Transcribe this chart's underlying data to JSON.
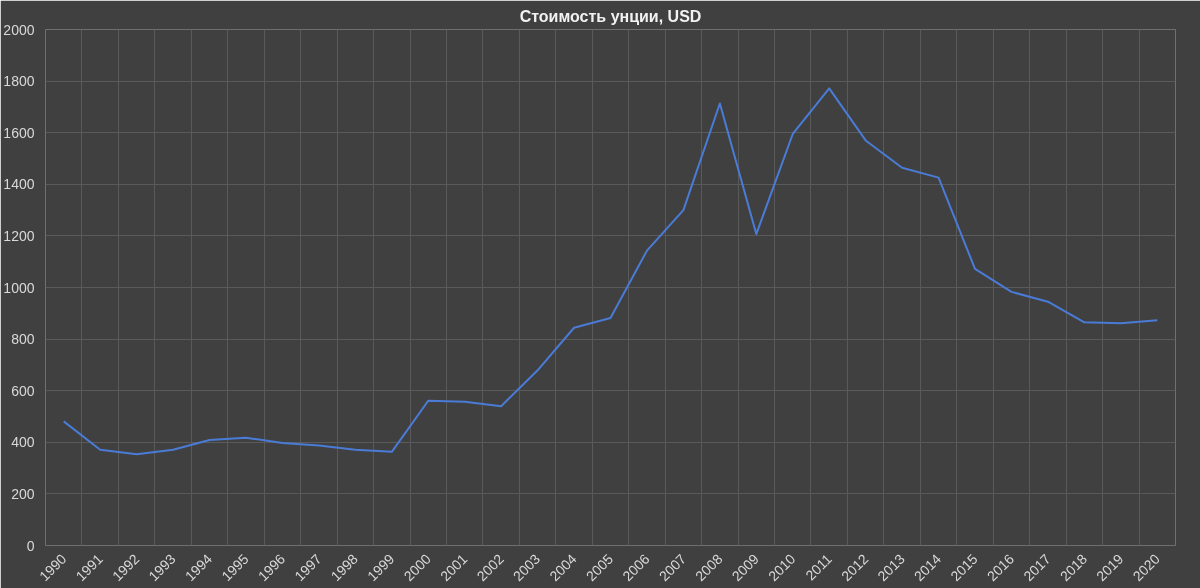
{
  "chart_data": {
    "type": "line",
    "title": "Стоимость унции, USD",
    "categories": [
      "1990",
      "1991",
      "1992",
      "1993",
      "1994",
      "1995",
      "1996",
      "1997",
      "1998",
      "1999",
      "2000",
      "2001",
      "2002",
      "2003",
      "2004",
      "2005",
      "2006",
      "2007",
      "2008",
      "2009",
      "2010",
      "2011",
      "2012",
      "2013",
      "2014",
      "2015",
      "2016",
      "2017",
      "2018",
      "2019",
      "2020"
    ],
    "series": [
      {
        "color": "#4a7bd6",
        "values": [
          481,
          371,
          354,
          371,
          409,
          418,
          397,
          388,
          371,
          363,
          561,
          557,
          540,
          679,
          844,
          882,
          1143,
          1300,
          1713,
          1207,
          1595,
          1772,
          1570,
          1464,
          1426,
          1072,
          983,
          945,
          865,
          861,
          873
        ]
      }
    ],
    "ylim": [
      0,
      2000
    ],
    "yticks": [
      0,
      200,
      400,
      600,
      800,
      1000,
      1200,
      1400,
      1600,
      1800,
      2000
    ],
    "grid": true
  }
}
